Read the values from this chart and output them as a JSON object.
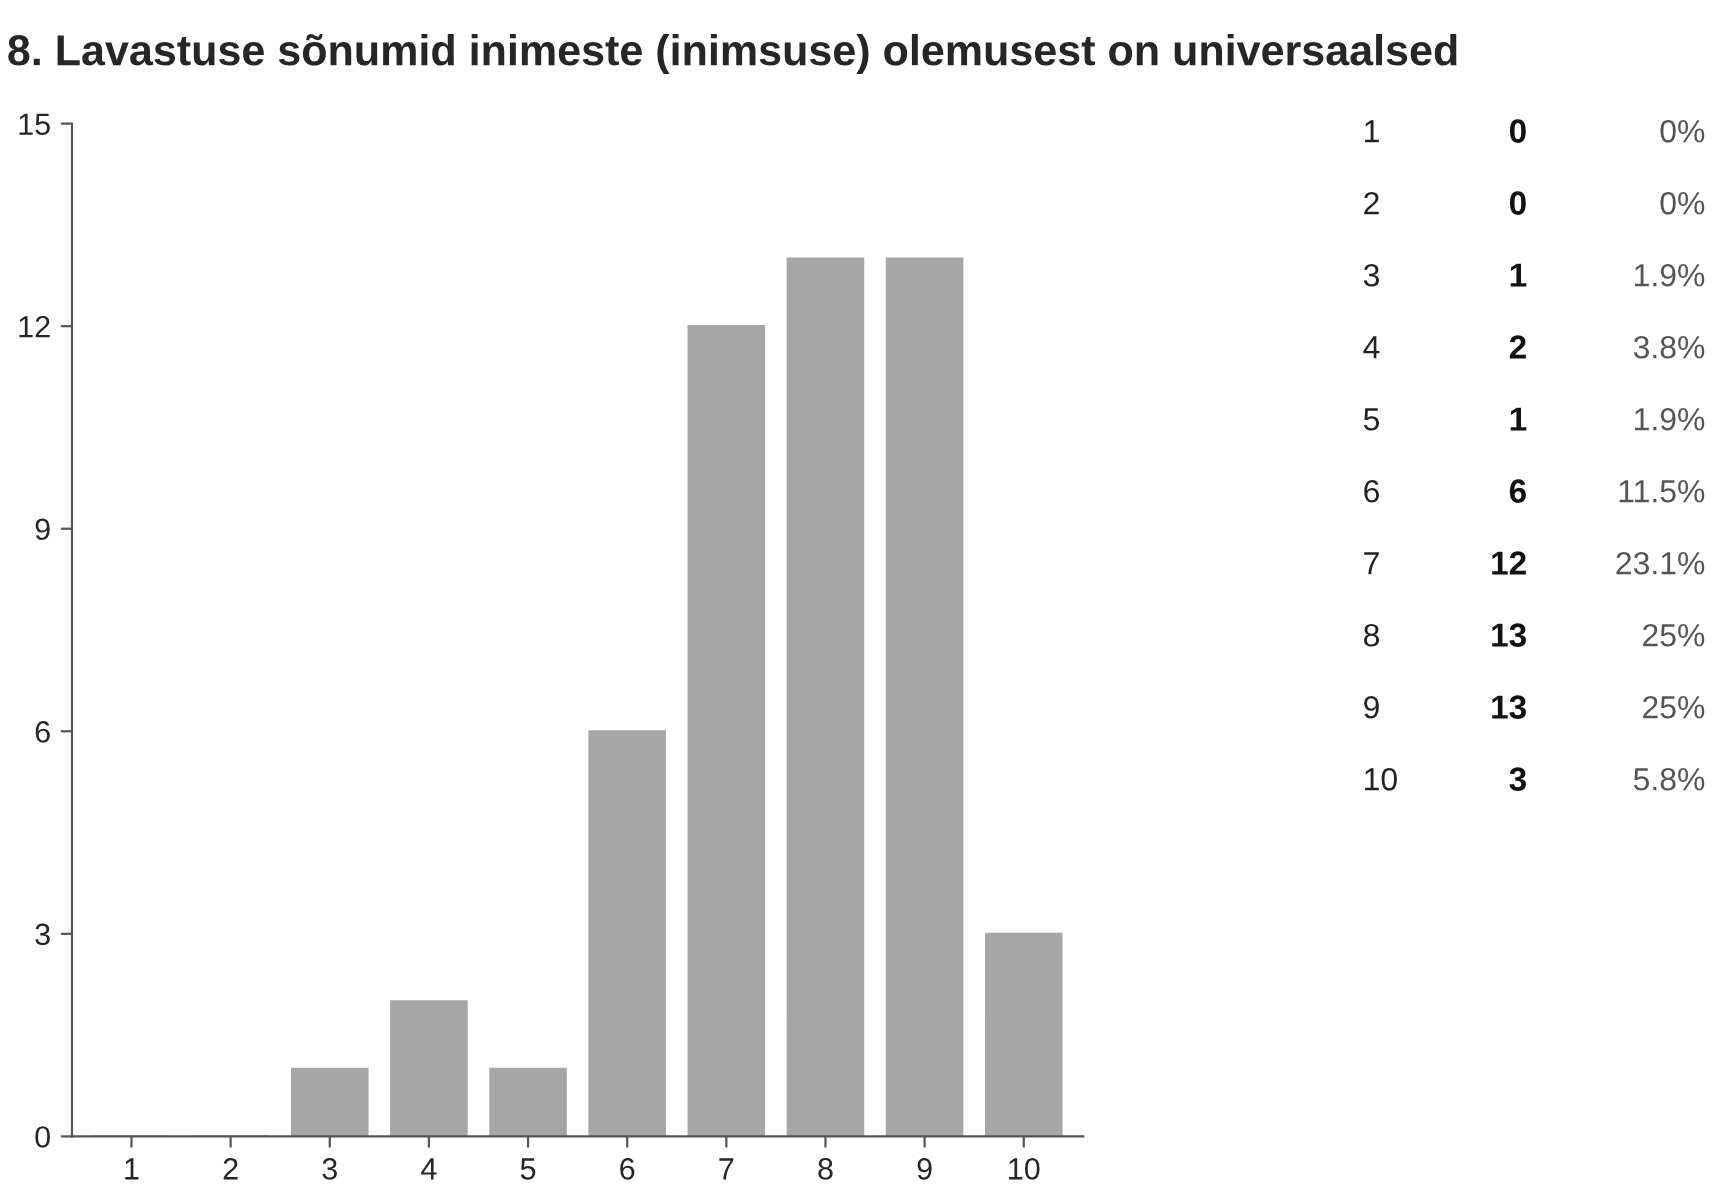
{
  "chart_data": {
    "type": "bar",
    "title": "8. Lavastuse sõnumid inimeste (inimsuse) olemusest on universaalsed",
    "categories": [
      "1",
      "2",
      "3",
      "4",
      "5",
      "6",
      "7",
      "8",
      "9",
      "10"
    ],
    "values": [
      0,
      0,
      1,
      2,
      1,
      6,
      12,
      13,
      13,
      3
    ],
    "color": "#a6a6a6",
    "ylim": [
      0,
      15
    ],
    "yticks": [
      0,
      3,
      6,
      9,
      12,
      15
    ],
    "grid": false,
    "annotations": [
      "0",
      "0%",
      "0",
      "0%",
      "1",
      "1.9%",
      "2",
      "3.8%",
      "1",
      "1.9%",
      "6",
      "11.5%",
      "12",
      "23.1%",
      "13",
      "25%",
      "13",
      "25%",
      "3",
      "5.8%"
    ]
  }
}
